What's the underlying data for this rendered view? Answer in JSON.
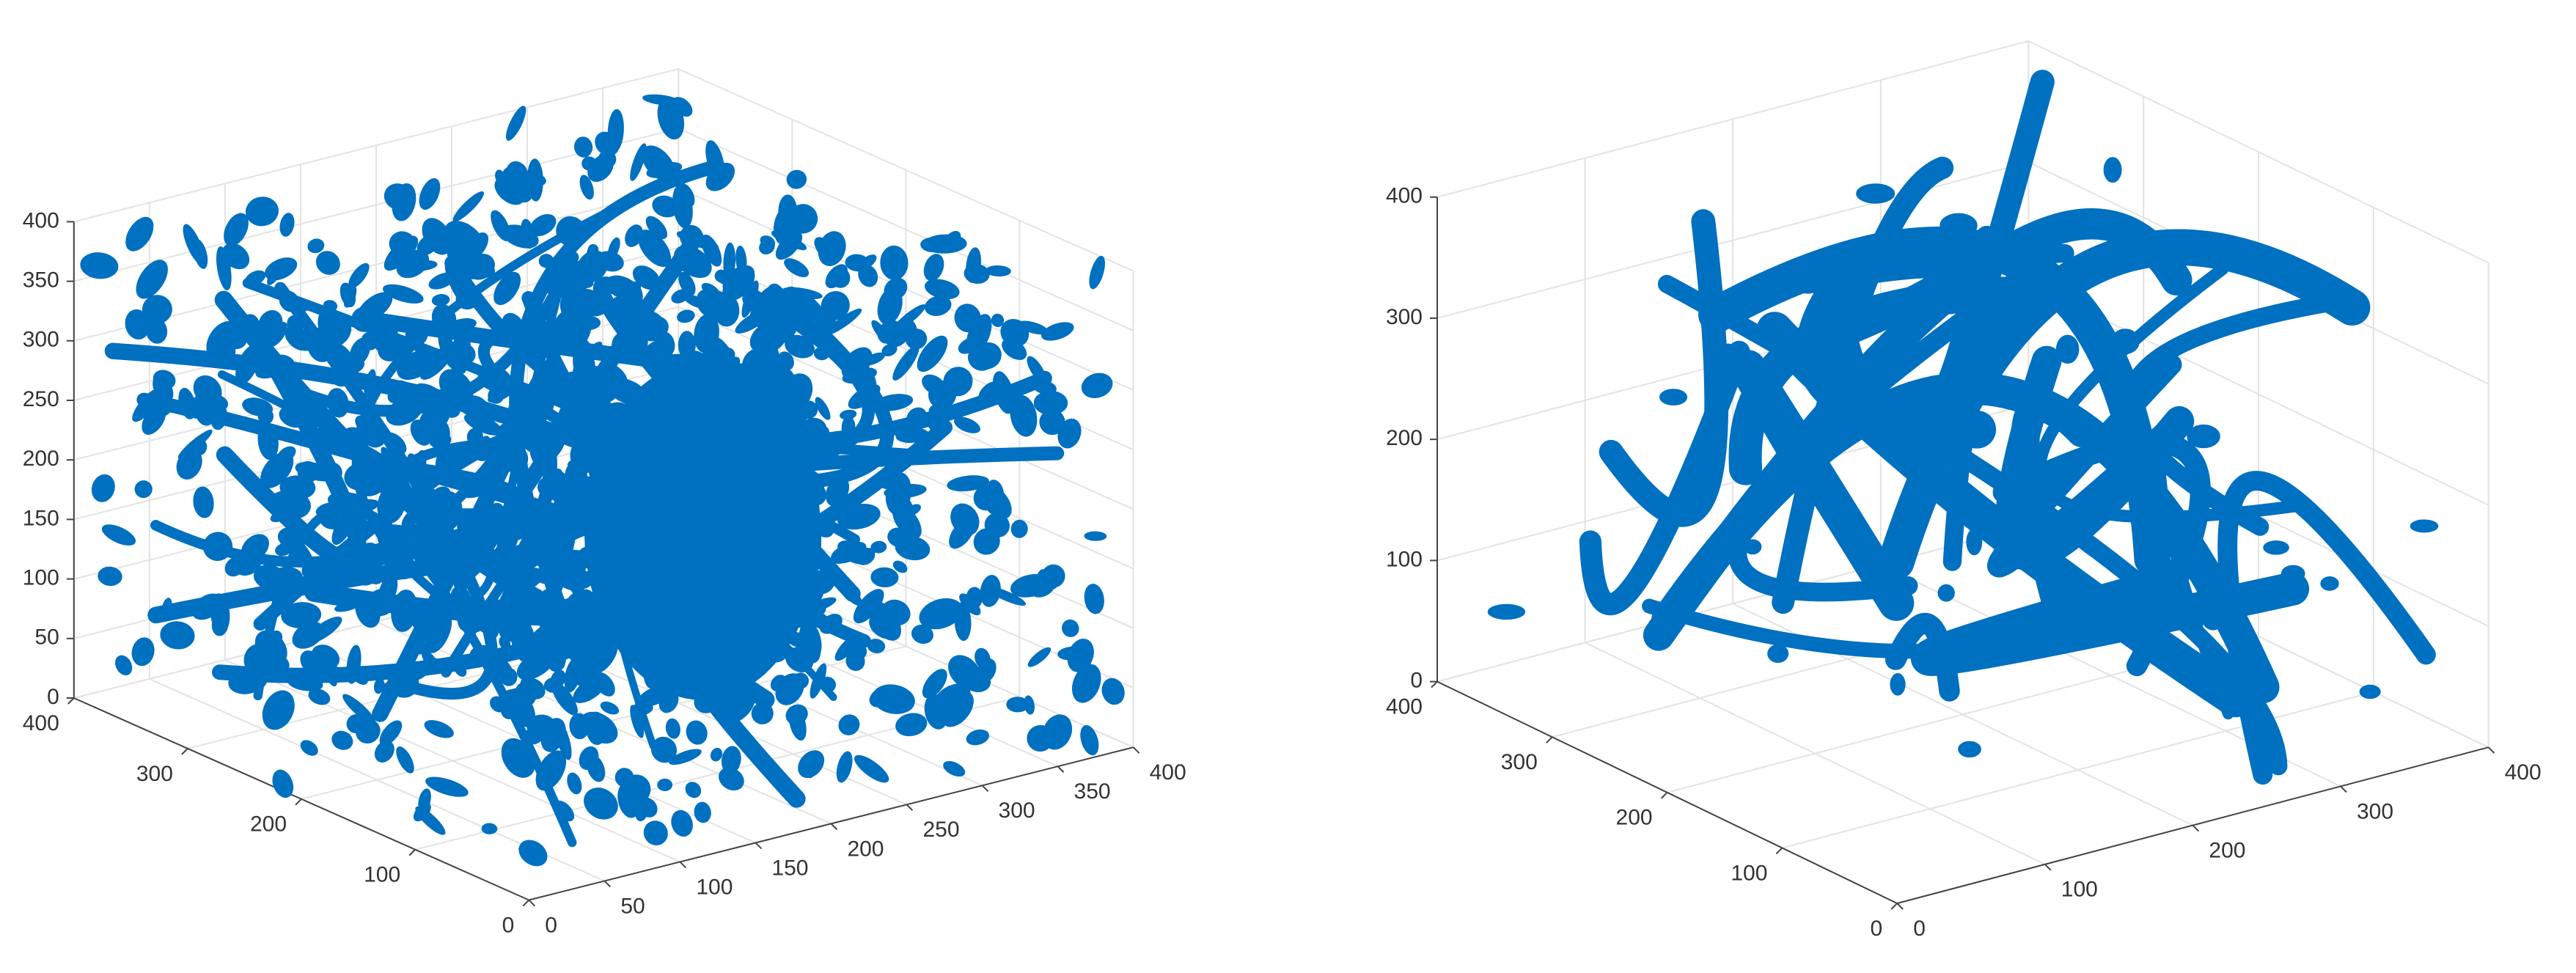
{
  "chart_data": [
    {
      "type": "scatter3d",
      "color": "#0070c0",
      "grid": true,
      "xlim": [
        0,
        400
      ],
      "ylim": [
        0,
        400
      ],
      "zlim": [
        0,
        400
      ],
      "xticks": [
        0,
        50,
        100,
        150,
        200,
        250,
        300,
        350,
        400
      ],
      "yticks": [
        0,
        100,
        200,
        300,
        400
      ],
      "zticks": [
        0,
        50,
        100,
        150,
        200,
        250,
        300,
        350,
        400
      ]
    },
    {
      "type": "scatter3d",
      "color": "#0070c0",
      "grid": true,
      "xlim": [
        0,
        400
      ],
      "ylim": [
        0,
        400
      ],
      "zlim": [
        0,
        400
      ],
      "xticks": [
        0,
        100,
        200,
        300,
        400
      ],
      "yticks": [
        0,
        100,
        200,
        300,
        400
      ],
      "zticks": [
        0,
        100,
        200,
        300,
        400
      ]
    }
  ]
}
